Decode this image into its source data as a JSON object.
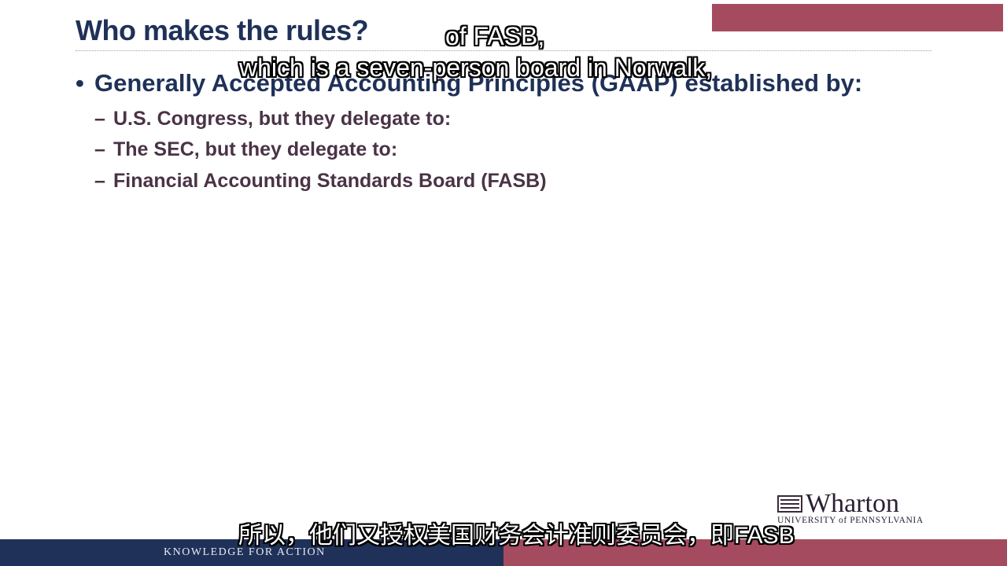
{
  "slide": {
    "title": "Who makes the rules?",
    "bullet_marker": "•",
    "main_bullet": "Generally Accepted Accounting Principles (GAAP) established by:",
    "sub_marker": "–",
    "sub_items": [
      "U.S. Congress, but they delegate to:",
      "The SEC, but they delegate to:",
      "Financial Accounting Standards Board (FASB)"
    ]
  },
  "captions": {
    "line1": "of FASB,",
    "line2": "which is a seven-person board in Norwalk,",
    "chinese": "所以，他们又授权美国财务会计准则委员会，即FASB"
  },
  "logo": {
    "name": "Wharton",
    "subtitle": "UNIVERSITY of PENNSYLVANIA",
    "icon": "penn-shield-icon"
  },
  "footer": {
    "tagline": "KNOWLEDGE FOR ACTION"
  },
  "colors": {
    "navy": "#1f3158",
    "maroon": "#a44b60",
    "sub_text": "#4a3346"
  }
}
